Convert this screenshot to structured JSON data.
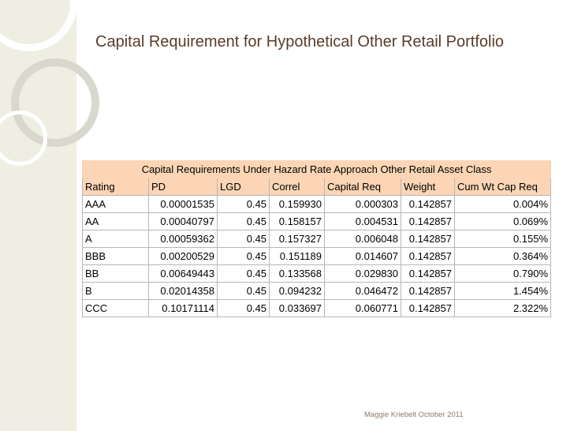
{
  "slide": {
    "title": "Capital Requirement for Hypothetical Other Retail Portfolio",
    "footer": "Maggie Kriebelt October 2011"
  },
  "table": {
    "caption": "Capital Requirements Under Hazard Rate Approach Other Retail Asset Class",
    "columns": [
      "Rating",
      "PD",
      "LGD",
      "Correl",
      "Capital Req",
      "Weight",
      "Cum Wt Cap Req"
    ],
    "rows": [
      [
        "AAA",
        "0.00001535",
        "0.45",
        "0.159930",
        "0.000303",
        "0.142857",
        "0.004%"
      ],
      [
        "AA",
        "0.00040797",
        "0.45",
        "0.158157",
        "0.004531",
        "0.142857",
        "0.069%"
      ],
      [
        "A",
        "0.00059362",
        "0.45",
        "0.157327",
        "0.006048",
        "0.142857",
        "0.155%"
      ],
      [
        "BBB",
        "0.00200529",
        "0.45",
        "0.151189",
        "0.014607",
        "0.142857",
        "0.364%"
      ],
      [
        "BB",
        "0.00649443",
        "0.45",
        "0.133568",
        "0.029830",
        "0.142857",
        "0.790%"
      ],
      [
        "B",
        "0.02014358",
        "0.45",
        "0.094232",
        "0.046472",
        "0.142857",
        "1.454%"
      ],
      [
        "CCC",
        "0.10171114",
        "0.45",
        "0.033697",
        "0.060771",
        "0.142857",
        "2.322%"
      ]
    ]
  },
  "colors": {
    "title": "#5b3b2a",
    "header_fill": "#fbd5b5",
    "left_band": "#efeee2"
  }
}
